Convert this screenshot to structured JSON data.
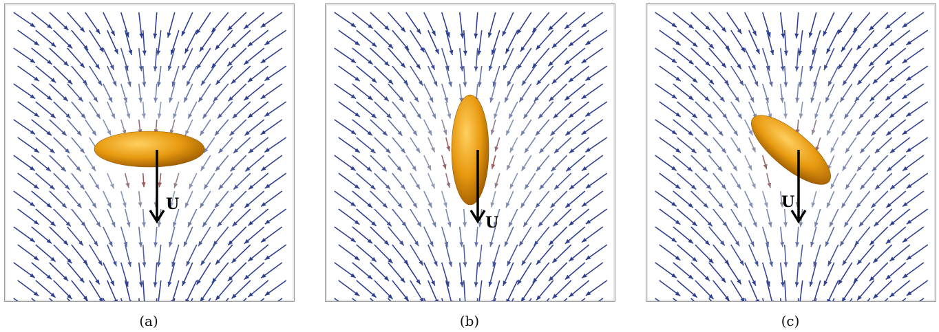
{
  "panels": [
    {
      "caption": "(a)",
      "velocity_label": "U",
      "ellipsoid_orientation": "horizontal"
    },
    {
      "caption": "(b)",
      "velocity_label": "U",
      "ellipsoid_orientation": "vertical"
    },
    {
      "caption": "(c)",
      "velocity_label": "U",
      "ellipsoid_orientation": "tilted"
    }
  ],
  "colors": {
    "far_field_arrow": "#2e3f8f",
    "mid_arrow": "#8e9ab8",
    "near_arrow": "#a03a2a",
    "ellipsoid": "#e89a10",
    "velocity_arrow": "#000000",
    "frame": "#9a9a9a"
  }
}
